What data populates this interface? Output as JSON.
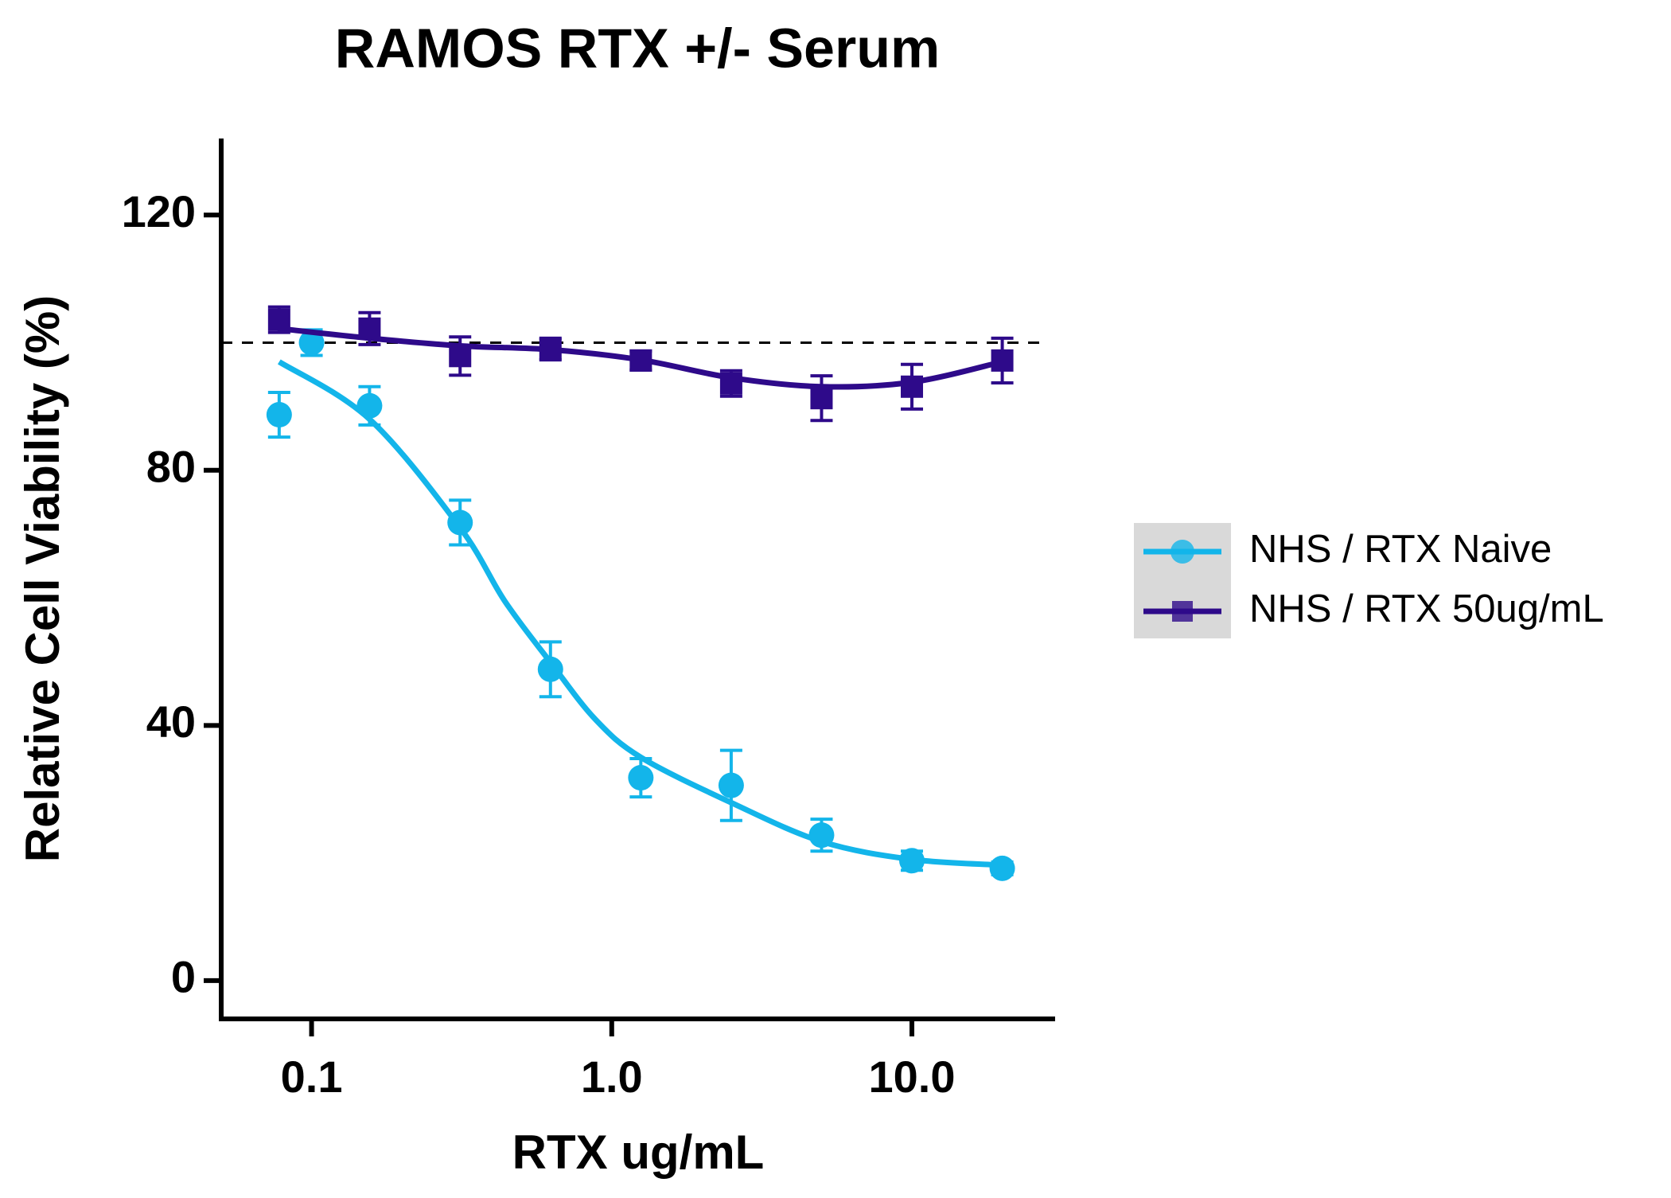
{
  "chart_data": {
    "type": "scatter",
    "title": "RAMOS RTX +/- Serum",
    "x_label": "RTX ug/mL",
    "y_label": "Relative Cell Viability (%)",
    "x_scale": "log",
    "xlim": [
      0.05,
      30
    ],
    "xticks": [
      0.1,
      {
        "value": 1,
        "label": "1.0"
      },
      {
        "value": 10,
        "label": "10.0"
      }
    ],
    "ylim": [
      -6,
      132
    ],
    "yticks": [
      0,
      40,
      80,
      120
    ],
    "reference_line": 100,
    "legend": "right",
    "series": [
      {
        "name": "NHS / RTX Naive",
        "color": "#13b5ea",
        "marker": "circle",
        "x": [
          0.078,
          0.1,
          0.156,
          0.3125,
          0.625,
          1.25,
          2.5,
          5,
          10,
          20
        ],
        "values": [
          88.7,
          100,
          90.1,
          71.8,
          48.8,
          31.8,
          30.6,
          22.8,
          18.8,
          17.6
        ],
        "errors": [
          3.5,
          2,
          3,
          3.5,
          4.3,
          3,
          5.5,
          2.5,
          1.5,
          1
        ],
        "fit": {
          "x": [
            0.078,
            0.156,
            0.3125,
            0.44,
            0.625,
            0.88,
            1.25,
            2.5,
            5,
            10,
            20
          ],
          "values": [
            97,
            88,
            71,
            59.5,
            49.9,
            41,
            35,
            27.9,
            21.8,
            19,
            18.1
          ]
        }
      },
      {
        "name": "NHS / RTX 50ug/mL",
        "color": "#2e0a8a",
        "marker": "square",
        "x": [
          0.078,
          0.156,
          0.3125,
          0.625,
          1.25,
          2.5,
          5,
          10,
          20
        ],
        "values": [
          103.6,
          102.2,
          97.9,
          99,
          97.2,
          93.6,
          91.3,
          93.1,
          97.2
        ],
        "errors": [
          2,
          2.5,
          3,
          1.7,
          1.5,
          2,
          3.5,
          3.5,
          3.5
        ],
        "fit": {
          "x": [
            0.078,
            0.156,
            0.3125,
            0.625,
            1.25,
            2.5,
            5,
            10,
            20
          ],
          "values": [
            102.2,
            100.7,
            99.5,
            98.9,
            97.3,
            94.5,
            93.1,
            93.8,
            97
          ]
        }
      }
    ]
  }
}
